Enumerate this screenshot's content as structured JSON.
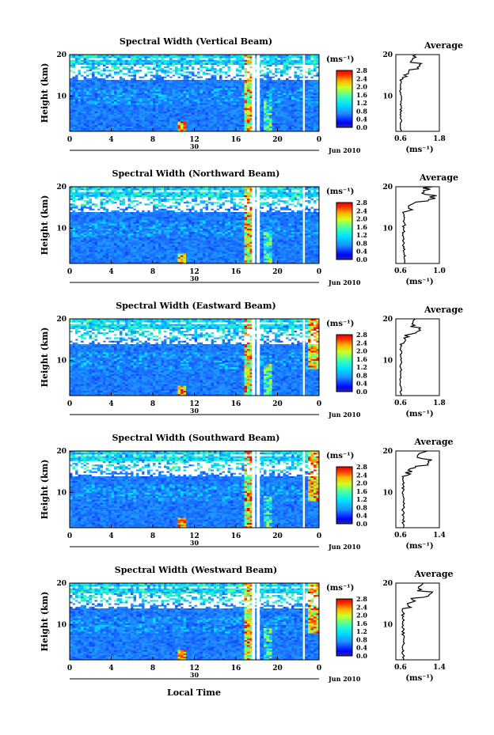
{
  "figure": {
    "xlabel": "Local Time",
    "date_tick": "30",
    "date_label": "Jun 2010"
  },
  "chart_data": [
    {
      "type": "heatmap",
      "title": "Spectral Width (Vertical Beam)",
      "ylabel": "Height (km)",
      "xlim": [
        0,
        24
      ],
      "ylim": [
        1.5,
        20
      ],
      "xticks": [
        "0",
        "4",
        "8",
        "12",
        "16",
        "20",
        "0"
      ],
      "yticks": [
        "10",
        "20"
      ],
      "colorbar": {
        "unit": "(ms⁻¹)",
        "ticks": [
          "0.0",
          "0.4",
          "0.8",
          "1.2",
          "1.6",
          "2.0",
          "2.4",
          "2.8"
        ]
      },
      "average_profile": {
        "title": "Average",
        "xticks": [
          "0.6",
          "1.8"
        ],
        "xlim": [
          0.5,
          1.8
        ],
        "xlabel": "(ms⁻¹)",
        "yticks": [
          "10",
          "20"
        ]
      }
    },
    {
      "type": "heatmap",
      "title": "Spectral Width (Northward Beam)",
      "ylabel": "Height (km)",
      "xlim": [
        0,
        24
      ],
      "ylim": [
        1.5,
        20
      ],
      "xticks": [
        "0",
        "4",
        "8",
        "12",
        "16",
        "20",
        "0"
      ],
      "yticks": [
        "10",
        "20"
      ],
      "colorbar": {
        "unit": "(ms⁻¹)",
        "ticks": [
          "0.0",
          "0.4",
          "0.8",
          "1.2",
          "1.6",
          "2.0",
          "2.4",
          "2.8"
        ]
      },
      "average_profile": {
        "title": "Average",
        "xticks": [
          "0.6",
          "1.0"
        ],
        "xlim": [
          0.5,
          1.3
        ],
        "xlabel": "(ms⁻¹)",
        "yticks": [
          "10",
          "20"
        ]
      }
    },
    {
      "type": "heatmap",
      "title": "Spectral Width (Eastward Beam)",
      "ylabel": "Height (km)",
      "xlim": [
        0,
        24
      ],
      "ylim": [
        1.5,
        20
      ],
      "xticks": [
        "0",
        "4",
        "8",
        "12",
        "16",
        "20",
        "0"
      ],
      "yticks": [
        "10",
        "20"
      ],
      "colorbar": {
        "unit": "(ms⁻¹)",
        "ticks": [
          "0.0",
          "0.4",
          "0.8",
          "1.2",
          "1.6",
          "2.0",
          "2.4",
          "2.8"
        ]
      },
      "average_profile": {
        "title": "Average",
        "xticks": [
          "0.6",
          "1.8"
        ],
        "xlim": [
          0.5,
          1.8
        ],
        "xlabel": "(ms⁻¹)",
        "yticks": [
          "10",
          "20"
        ]
      }
    },
    {
      "type": "heatmap",
      "title": "Spectral Width (Southward Beam)",
      "ylabel": "Height (km)",
      "xlim": [
        0,
        24
      ],
      "ylim": [
        1.5,
        20
      ],
      "xticks": [
        "0",
        "4",
        "8",
        "12",
        "16",
        "20",
        "0"
      ],
      "yticks": [
        "10",
        "20"
      ],
      "colorbar": {
        "unit": "(ms⁻¹)",
        "ticks": [
          "0.0",
          "0.4",
          "0.8",
          "1.2",
          "1.6",
          "2.0",
          "2.4",
          "2.8"
        ]
      },
      "average_profile": {
        "title": "Average",
        "xticks": [
          "0.6",
          "1.4"
        ],
        "xlim": [
          0.5,
          1.4
        ],
        "xlabel": "(ms⁻¹)",
        "yticks": [
          "10",
          "20"
        ]
      }
    },
    {
      "type": "heatmap",
      "title": "Spectral Width (Westward Beam)",
      "ylabel": "Height (km)",
      "xlim": [
        0,
        24
      ],
      "ylim": [
        1.5,
        20
      ],
      "xticks": [
        "0",
        "4",
        "8",
        "12",
        "16",
        "20",
        "0"
      ],
      "yticks": [
        "10",
        "20"
      ],
      "colorbar": {
        "unit": "(ms⁻¹)",
        "ticks": [
          "0.0",
          "0.4",
          "0.8",
          "1.2",
          "1.6",
          "2.0",
          "2.4",
          "2.8"
        ]
      },
      "average_profile": {
        "title": "Average",
        "xticks": [
          "0.6",
          "1.4"
        ],
        "xlim": [
          0.5,
          1.4
        ],
        "xlabel": "(ms⁻¹)",
        "yticks": [
          "10",
          "20"
        ]
      }
    }
  ]
}
